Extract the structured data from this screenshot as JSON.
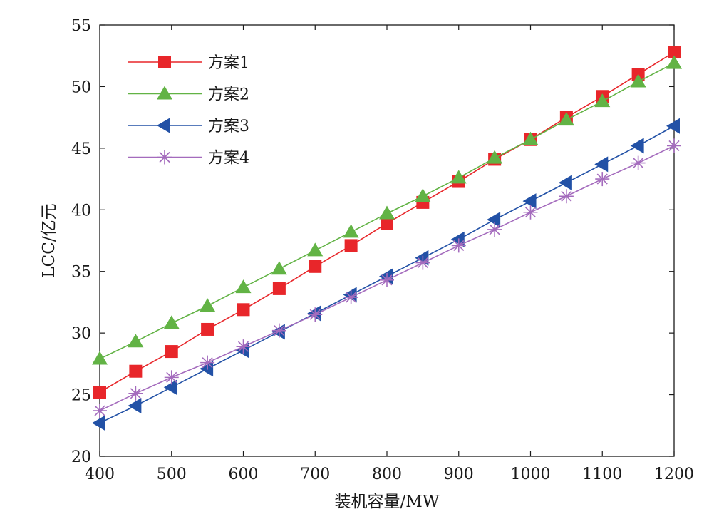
{
  "chart_data": {
    "type": "line",
    "title": "",
    "xlabel": "装机容量/MW",
    "ylabel": "LCC/亿元",
    "xlim": [
      400,
      1200
    ],
    "ylim": [
      20,
      55
    ],
    "xticks": [
      400,
      500,
      600,
      700,
      800,
      900,
      1000,
      1100,
      1200
    ],
    "yticks": [
      20,
      25,
      30,
      35,
      40,
      45,
      50,
      55
    ],
    "grid": false,
    "legend_position": "top-left",
    "x": [
      400,
      450,
      500,
      550,
      600,
      650,
      700,
      750,
      800,
      850,
      900,
      950,
      1000,
      1050,
      1100,
      1150,
      1200
    ],
    "series": [
      {
        "name": "方案1",
        "color": "#e8262a",
        "marker": "square",
        "values": [
          25.2,
          26.9,
          28.5,
          30.3,
          31.9,
          33.6,
          35.4,
          37.1,
          38.9,
          40.6,
          42.3,
          44.1,
          45.7,
          47.5,
          49.2,
          51.0,
          52.8
        ]
      },
      {
        "name": "方案2",
        "color": "#62b345",
        "marker": "triangle-up",
        "values": [
          27.9,
          29.3,
          30.8,
          32.2,
          33.7,
          35.2,
          36.7,
          38.2,
          39.7,
          41.1,
          42.6,
          44.2,
          45.7,
          47.3,
          48.8,
          50.4,
          51.9
        ]
      },
      {
        "name": "方案3",
        "color": "#2251a6",
        "marker": "triangle-left",
        "values": [
          22.7,
          24.1,
          25.6,
          27.1,
          28.6,
          30.1,
          31.6,
          33.1,
          34.6,
          36.1,
          37.6,
          39.2,
          40.7,
          42.2,
          43.7,
          45.2,
          46.8
        ]
      },
      {
        "name": "方案4",
        "color": "#a46bbd",
        "marker": "asterisk",
        "values": [
          23.7,
          25.1,
          26.4,
          27.6,
          28.9,
          30.2,
          31.5,
          32.9,
          34.3,
          35.7,
          37.1,
          38.4,
          39.8,
          41.1,
          42.5,
          43.8,
          45.2
        ]
      }
    ]
  }
}
